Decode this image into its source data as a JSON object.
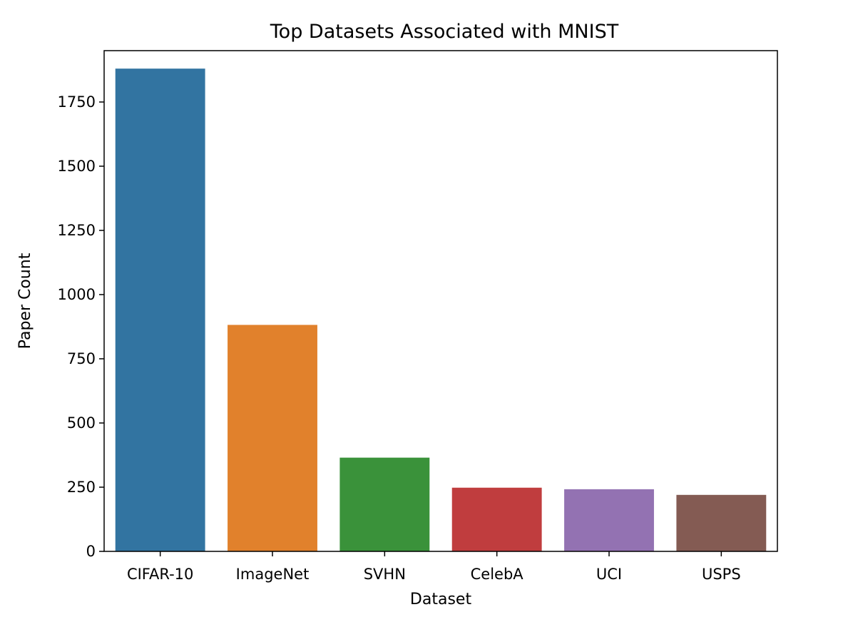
{
  "chart_data": {
    "type": "bar",
    "title": "Top Datasets Associated with MNIST",
    "xlabel": "Dataset",
    "ylabel": "Paper Count",
    "categories": [
      "CIFAR-10",
      "ImageNet",
      "SVHN",
      "CelebA",
      "UCI",
      "USPS"
    ],
    "values": [
      1880,
      882,
      365,
      248,
      242,
      220
    ],
    "colors": [
      "#3274a1",
      "#e1812c",
      "#3a923a",
      "#c03d3e",
      "#9372b2",
      "#845b53"
    ],
    "ylim": [
      0,
      1950
    ],
    "yticks": [
      0,
      250,
      500,
      750,
      1000,
      1250,
      1500,
      1750
    ],
    "grid": false,
    "legend": "none"
  }
}
